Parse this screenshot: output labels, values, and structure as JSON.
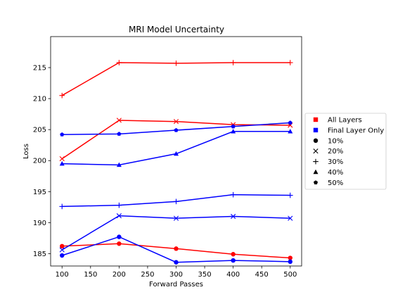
{
  "chart_data": {
    "type": "line",
    "title": "MRI Model Uncertainty",
    "xlabel": "Forward Passes",
    "ylabel": "Loss",
    "x": [
      100,
      200,
      300,
      400,
      500
    ],
    "xlim": [
      80,
      520
    ],
    "ylim": [
      183,
      220
    ],
    "x_ticks": [
      100,
      150,
      200,
      250,
      300,
      350,
      400,
      450,
      500
    ],
    "y_ticks": [
      185,
      190,
      195,
      200,
      205,
      210,
      215
    ],
    "grid": false,
    "legend_position": "outside-right",
    "colors": {
      "all_layers": "#ff0000",
      "final_layer_only": "#0000ff"
    },
    "series": [
      {
        "group": "All Layers",
        "marker": "circle",
        "color": "#ff0000",
        "values": [
          186.2,
          186.6,
          185.8,
          184.9,
          184.3
        ]
      },
      {
        "group": "All Layers",
        "marker": "x",
        "color": "#ff0000",
        "values": [
          200.3,
          206.5,
          206.3,
          205.8,
          205.7
        ]
      },
      {
        "group": "All Layers",
        "marker": "plus",
        "color": "#ff0000",
        "values": [
          210.5,
          215.8,
          215.7,
          215.8,
          215.8
        ]
      },
      {
        "group": "Final Layer Only",
        "marker": "circle",
        "color": "#0000ff",
        "values": [
          184.7,
          187.7,
          183.6,
          183.9,
          183.7
        ]
      },
      {
        "group": "Final Layer Only",
        "marker": "x",
        "color": "#0000ff",
        "values": [
          185.6,
          191.1,
          190.7,
          191.0,
          190.7
        ]
      },
      {
        "group": "Final Layer Only",
        "marker": "plus",
        "color": "#0000ff",
        "values": [
          192.6,
          192.8,
          193.4,
          194.5,
          194.4
        ]
      },
      {
        "group": "Final Layer Only",
        "marker": "triangle",
        "color": "#0000ff",
        "values": [
          199.5,
          199.3,
          201.1,
          204.7,
          204.7
        ]
      },
      {
        "group": "Final Layer Only",
        "marker": "pentagon",
        "color": "#0000ff",
        "values": [
          204.2,
          204.3,
          204.9,
          205.5,
          206.1
        ]
      }
    ],
    "legend": [
      {
        "label": "All Layers",
        "marker": "square",
        "color": "#ff0000"
      },
      {
        "label": "Final Layer Only",
        "marker": "square",
        "color": "#0000ff"
      },
      {
        "label": "10%",
        "marker": "circle",
        "color": "#000000"
      },
      {
        "label": "20%",
        "marker": "x",
        "color": "#000000"
      },
      {
        "label": "30%",
        "marker": "plus",
        "color": "#000000"
      },
      {
        "label": "40%",
        "marker": "triangle",
        "color": "#000000"
      },
      {
        "label": "50%",
        "marker": "pentagon",
        "color": "#000000"
      }
    ]
  }
}
